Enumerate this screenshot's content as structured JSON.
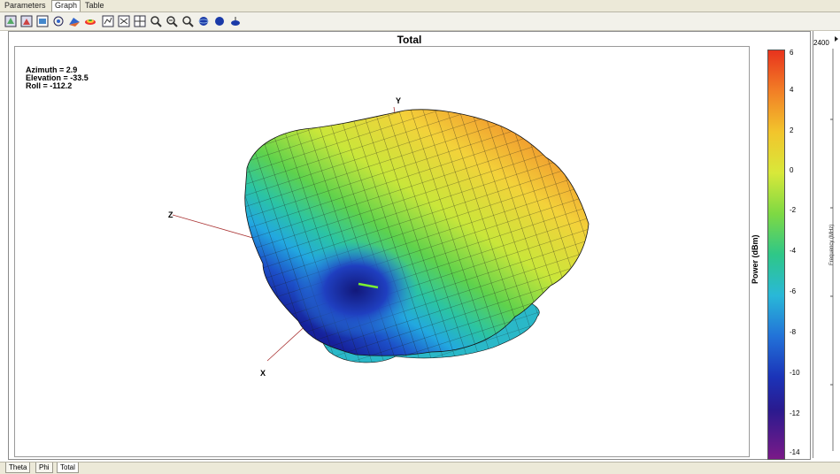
{
  "top_tabs": [
    {
      "label": "Parameters"
    },
    {
      "label": "Graph"
    },
    {
      "label": "Table"
    }
  ],
  "toolbar": {
    "icons": [
      "view-3d-icon",
      "view-3d-alt-icon",
      "chart-icon",
      "rotate-icon",
      "surface-icon",
      "contour-icon",
      "polar-icon",
      "cartesian-icon",
      "grid-icon",
      "zoom-icon",
      "zoom-fit-icon",
      "zoom-out-icon",
      "sphere-icon",
      "sphere-shaded-icon",
      "cone-icon"
    ]
  },
  "plot": {
    "title": "Total",
    "readout": {
      "azimuth": "Azimuth = 2.9",
      "elevation": "Elevation = -33.5",
      "roll": "Roll = -112.2"
    },
    "axes": {
      "x": "X",
      "y": "Y",
      "z": "Z"
    },
    "colorbar": {
      "label": "Power (dBm)",
      "ticks": [
        "6",
        "4",
        "2",
        "0",
        "-2",
        "-4",
        "-6",
        "-8",
        "-10",
        "-12",
        "-14"
      ]
    }
  },
  "right_panel": {
    "top_value": "2400",
    "axis_label": "Frequency (MHz)"
  },
  "bottom_tabs": [
    {
      "label": "Theta"
    },
    {
      "label": "Phi"
    },
    {
      "label": "Total"
    }
  ]
}
